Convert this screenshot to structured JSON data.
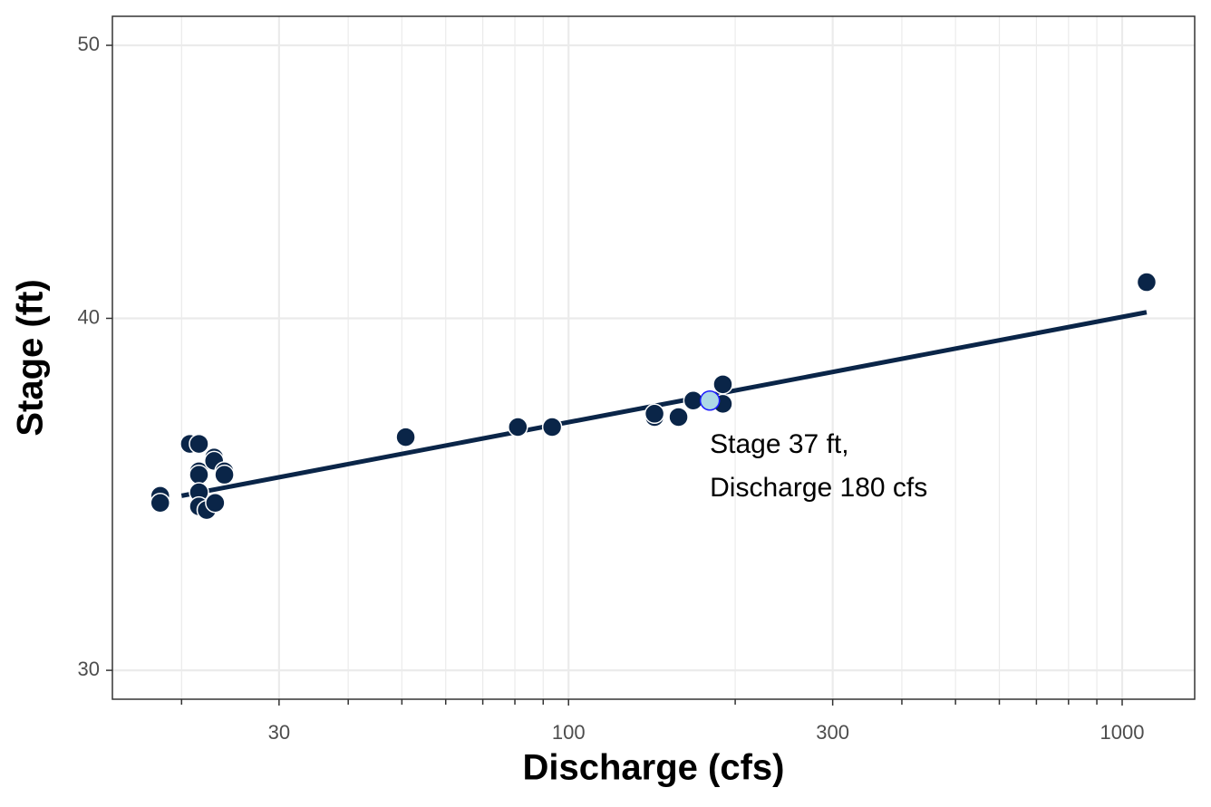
{
  "chart_data": {
    "type": "scatter",
    "xlabel": "Discharge (cfs)",
    "ylabel": "Stage (ft)",
    "xscale": "log",
    "yscale": "log",
    "xlim": [
      15,
      1352
    ],
    "ylim": [
      29.3,
      51.2
    ],
    "xticks": [
      30,
      100,
      300,
      1000
    ],
    "xminorticks": [
      20,
      40,
      50,
      60,
      70,
      80,
      90,
      200,
      400,
      500,
      600,
      700,
      800,
      900
    ],
    "yticks": [
      30,
      40,
      50
    ],
    "grid": true,
    "series": [
      {
        "color": "#0a2548",
        "x": [
          18.3,
          18.3,
          20.7,
          21.5,
          21.5,
          21.5,
          21.5,
          21.5,
          22.2,
          22.9,
          22.9,
          23.0,
          23.9,
          23.9,
          50.8,
          81.0,
          93.4,
          143,
          143,
          158,
          168,
          190,
          190,
          1107
        ],
        "y": [
          34.6,
          34.4,
          36.1,
          36.1,
          35.3,
          35.2,
          34.7,
          34.3,
          34.2,
          35.7,
          35.6,
          34.4,
          35.3,
          35.2,
          36.3,
          36.6,
          36.6,
          36.9,
          37.0,
          36.9,
          37.4,
          37.9,
          37.3,
          41.2
        ]
      }
    ],
    "fit": {
      "color": "#0a2548",
      "x": [
        20.0,
        1107
      ],
      "y": [
        34.6,
        40.2
      ]
    },
    "highlight": {
      "x": 180,
      "y": 37.4,
      "color": "#add8e6",
      "edge": "#1a1aff"
    },
    "annotation": {
      "lines": [
        "Stage 37 ft,",
        "Discharge 180 cfs"
      ]
    }
  }
}
